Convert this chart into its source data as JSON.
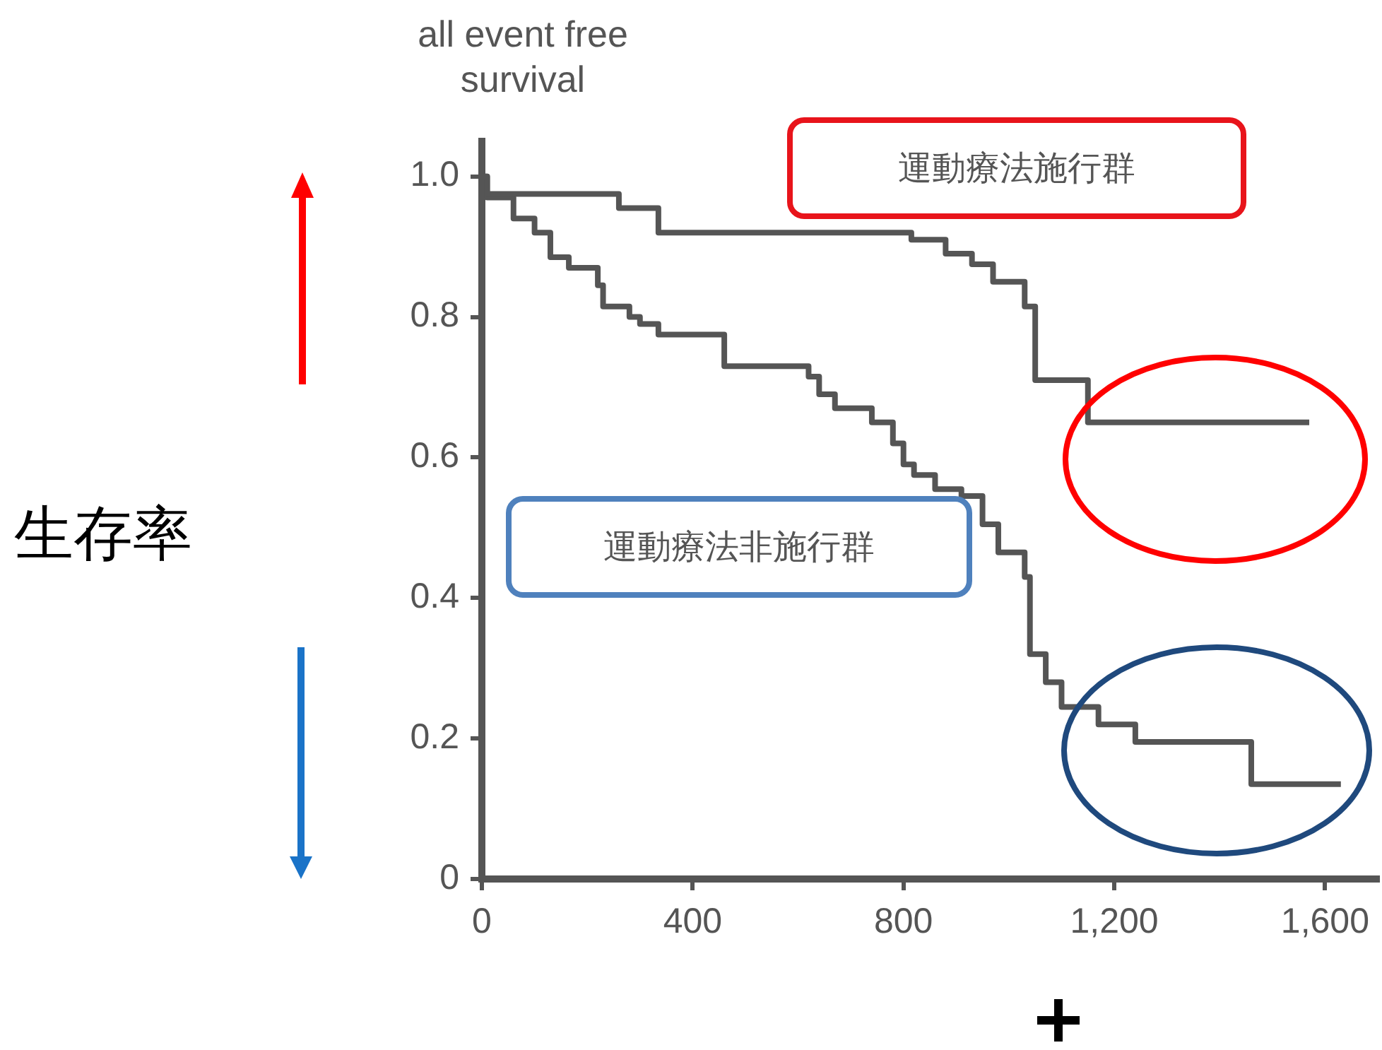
{
  "chart_data": {
    "type": "step",
    "title": "all event free survival",
    "ylabel": "生存率",
    "xlim": [
      0,
      1700
    ],
    "xticks": [
      0,
      400,
      800,
      {
        "value": 1200,
        "label": "1,200"
      },
      {
        "value": 1600,
        "label": "1,600"
      }
    ],
    "ylim": [
      0,
      1.05
    ],
    "yticks": [
      0,
      0.2,
      0.4,
      0.6,
      0.8,
      {
        "value": 1,
        "label": "1.0"
      }
    ],
    "grid": false,
    "legend": false,
    "marker": "none",
    "line_style": "solid",
    "series": [
      {
        "name": "運動療法施行群",
        "color": "#555555",
        "x": [
          0,
          10,
          260,
          335,
          815,
          880,
          930,
          970,
          1030,
          1050,
          1150,
          1570
        ],
        "values": [
          1.0,
          0.975,
          0.955,
          0.92,
          0.91,
          0.89,
          0.875,
          0.85,
          0.815,
          0.71,
          0.65,
          0.65
        ]
      },
      {
        "name": "運動療法非施行群",
        "color": "#555555",
        "x": [
          0,
          10,
          60,
          100,
          130,
          165,
          220,
          230,
          280,
          300,
          335,
          460,
          620,
          640,
          670,
          740,
          780,
          800,
          820,
          860,
          910,
          950,
          980,
          1030,
          1040,
          1070,
          1100,
          1170,
          1240,
          1460,
          1630
        ],
        "values": [
          1.0,
          0.97,
          0.94,
          0.92,
          0.885,
          0.87,
          0.845,
          0.815,
          0.8,
          0.79,
          0.775,
          0.73,
          0.715,
          0.69,
          0.67,
          0.65,
          0.62,
          0.59,
          0.575,
          0.555,
          0.545,
          0.505,
          0.465,
          0.43,
          0.32,
          0.28,
          0.245,
          0.22,
          0.195,
          0.135,
          0.135
        ]
      }
    ]
  }
}
